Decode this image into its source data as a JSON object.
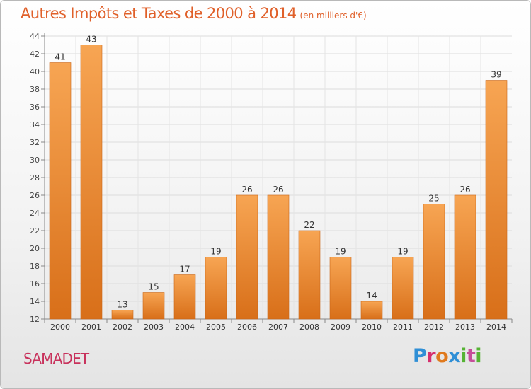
{
  "chart_data": {
    "type": "bar",
    "title": "Autres Impôts et Taxes de 2000 à 2014",
    "subtitle": "(en milliers d'€)",
    "categories": [
      "2000",
      "2001",
      "2002",
      "2003",
      "2004",
      "2005",
      "2006",
      "2007",
      "2008",
      "2009",
      "2010",
      "2011",
      "2012",
      "2013",
      "2014"
    ],
    "values": [
      41,
      43,
      13,
      15,
      17,
      19,
      26,
      26,
      22,
      19,
      14,
      19,
      25,
      26,
      39
    ],
    "ylim": [
      12,
      44
    ],
    "yticks": [
      12,
      14,
      16,
      18,
      20,
      22,
      24,
      26,
      28,
      30,
      32,
      34,
      36,
      38,
      40,
      42,
      44
    ],
    "grid": true,
    "bar_color": "#f29a45",
    "bar_color_dark": "#d9731c"
  },
  "footer": {
    "city": "SAMADET",
    "logo": "Proxiti",
    "city_color": "#c8325c"
  }
}
